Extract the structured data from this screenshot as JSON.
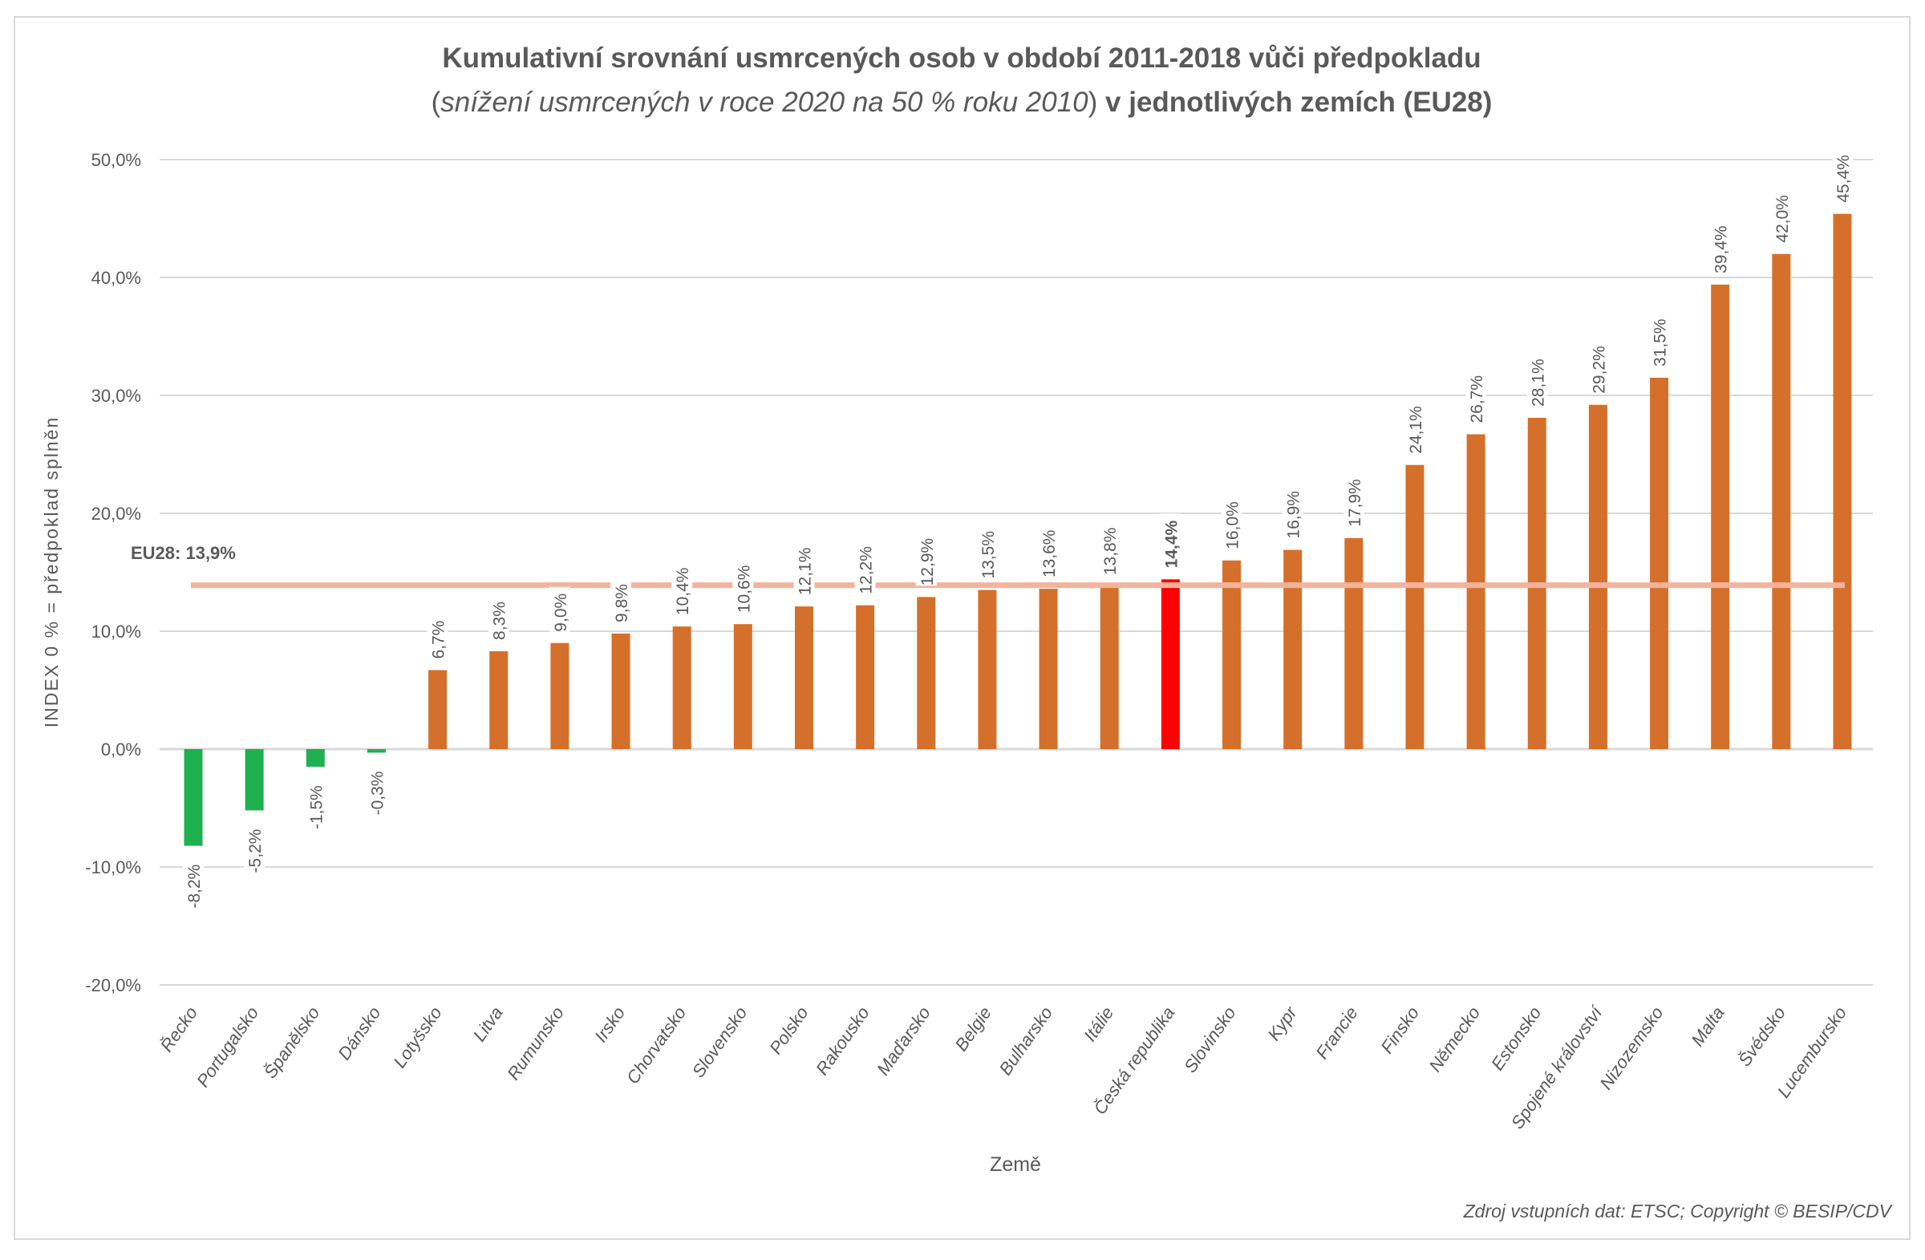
{
  "chart_data": {
    "type": "bar",
    "title": "Kumulativní srovnání usmrcených osob v období 2011-2018 vůči předpokladu",
    "subtitle_italic": "snížení usmrcených v roce 2020 na 50 % roku 2010",
    "subtitle_bold": "v jednotlivých zemích (EU28)",
    "xlabel": "Země",
    "ylabel": "INDEX 0 % = předpoklad splněn",
    "ylim": [
      -20,
      50
    ],
    "yticks": [
      50,
      40,
      30,
      20,
      10,
      0,
      -10,
      -20
    ],
    "ytick_labels": [
      "50,0%",
      "40,0%",
      "30,0%",
      "20,0%",
      "10,0%",
      "0,0%",
      "-10,0%",
      "-20,0%"
    ],
    "grid": true,
    "categories": [
      "Řecko",
      "Portugalsko",
      "Španělsko",
      "Dánsko",
      "Lotyšsko",
      "Litva",
      "Rumunsko",
      "Irsko",
      "Chorvatsko",
      "Slovensko",
      "Polsko",
      "Rakousko",
      "Maďarsko",
      "Belgie",
      "Bulharsko",
      "Itálie",
      "Česká republika",
      "Slovinsko",
      "Kypr",
      "Francie",
      "Finsko",
      "Německo",
      "Estonsko",
      "Spojené království",
      "Nizozemsko",
      "Malta",
      "Švédsko",
      "Lucembursko"
    ],
    "values": [
      -8.2,
      -5.2,
      -1.5,
      -0.3,
      6.7,
      8.3,
      9.0,
      9.8,
      10.4,
      10.6,
      12.1,
      12.2,
      12.9,
      13.5,
      13.6,
      13.8,
      14.4,
      16.0,
      16.9,
      17.9,
      24.1,
      26.7,
      28.1,
      29.2,
      31.5,
      39.4,
      42.0,
      45.4
    ],
    "data_labels": [
      "-8,2%",
      "-5,2%",
      "-1,5%",
      "-0,3%",
      "6,7%",
      "8,3%",
      "9,0%",
      "9,8%",
      "10,4%",
      "10,6%",
      "12,1%",
      "12,2%",
      "12,9%",
      "13,5%",
      "13,6%",
      "13,8%",
      "14,4%",
      "16,0%",
      "16,9%",
      "17,9%",
      "24,1%",
      "26,7%",
      "28,1%",
      "29,2%",
      "31,5%",
      "39,4%",
      "42,0%",
      "45,4%"
    ],
    "highlight_category": "Česká republika",
    "reference_line": {
      "label": "EU28: 13,9%",
      "value": 13.9,
      "color": "#f4b39c"
    },
    "colors": {
      "negative": "#1fb04f",
      "positive": "#d4702b",
      "highlight": "#ff0000",
      "grid": "#d9d9d9",
      "text": "#595959"
    },
    "source": "Zdroj vstupních dat: ETSC; Copyright © BESIP/CDV"
  }
}
